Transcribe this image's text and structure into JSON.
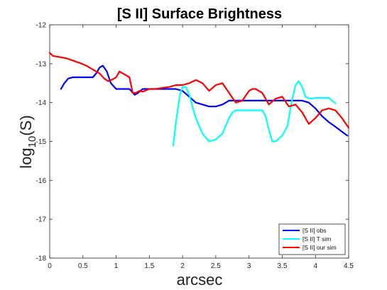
{
  "chart_data": {
    "type": "line",
    "title": "[S II] Surface Brightness",
    "xlabel": "arcsec",
    "ylabel": "log10(S)",
    "ylabel_main": "log",
    "ylabel_sub": "10",
    "ylabel_tail": "(S)",
    "xlim": [
      0,
      4.5
    ],
    "ylim": [
      -18,
      -12
    ],
    "xticks": [
      0,
      0.5,
      1,
      1.5,
      2,
      2.5,
      3,
      3.5,
      4,
      4.5
    ],
    "xtick_labels": [
      "0",
      "0.5",
      "1",
      "1.5",
      "2",
      "2.5",
      "3",
      "3.5",
      "4",
      "4.5"
    ],
    "yticks": [
      -18,
      -17,
      -16,
      -15,
      -14,
      -13,
      -12
    ],
    "ytick_labels": [
      "-18",
      "-17",
      "-16",
      "-15",
      "-14",
      "-13",
      "-12"
    ],
    "grid": false,
    "legend_position": "bottom-right",
    "series": [
      {
        "name": "[S II] obs",
        "color": "#0000ff",
        "x": [
          0.17,
          0.22,
          0.28,
          0.35,
          0.45,
          0.55,
          0.65,
          0.7,
          0.75,
          0.8,
          0.86,
          0.92,
          1.0,
          1.1,
          1.2,
          1.28,
          1.33,
          1.4,
          1.5,
          1.6,
          1.7,
          1.8,
          1.9,
          2.0,
          2.1,
          2.2,
          2.3,
          2.4,
          2.5,
          2.6,
          2.7,
          2.8,
          2.9,
          3.0,
          3.1,
          3.2,
          3.3,
          3.4,
          3.5,
          3.6,
          3.7,
          3.8,
          3.9,
          4.0,
          4.1,
          4.2,
          4.3,
          4.4,
          4.48
        ],
        "y": [
          -13.65,
          -13.5,
          -13.38,
          -13.35,
          -13.35,
          -13.35,
          -13.35,
          -13.25,
          -13.1,
          -13.05,
          -13.2,
          -13.5,
          -13.65,
          -13.65,
          -13.65,
          -13.8,
          -13.75,
          -13.65,
          -13.65,
          -13.65,
          -13.65,
          -13.65,
          -13.65,
          -13.7,
          -13.85,
          -14.0,
          -14.05,
          -14.1,
          -14.1,
          -14.05,
          -13.95,
          -13.95,
          -13.95,
          -13.95,
          -13.95,
          -13.95,
          -13.95,
          -13.95,
          -13.95,
          -13.95,
          -13.95,
          -13.95,
          -14.0,
          -14.15,
          -14.35,
          -14.5,
          -14.62,
          -14.75,
          -14.85
        ]
      },
      {
        "name": "[S II] T sim",
        "color": "#00ffff",
        "x": [
          1.86,
          1.9,
          1.96,
          2.0,
          2.05,
          2.1,
          2.15,
          2.2,
          2.3,
          2.4,
          2.5,
          2.6,
          2.7,
          2.75,
          2.8,
          2.9,
          3.0,
          3.1,
          3.2,
          3.25,
          3.3,
          3.35,
          3.4,
          3.5,
          3.58,
          3.64,
          3.7,
          3.75,
          3.8,
          3.85,
          3.92,
          4.0,
          4.1,
          4.2,
          4.3
        ],
        "y": [
          -15.1,
          -14.5,
          -13.8,
          -13.6,
          -13.6,
          -13.8,
          -14.1,
          -14.4,
          -14.8,
          -15.0,
          -14.95,
          -14.8,
          -14.4,
          -14.25,
          -14.2,
          -14.2,
          -14.2,
          -14.2,
          -14.2,
          -14.35,
          -14.7,
          -15.0,
          -15.0,
          -14.85,
          -14.6,
          -14.0,
          -13.55,
          -13.45,
          -13.6,
          -13.85,
          -13.9,
          -13.88,
          -13.88,
          -13.88,
          -14.02
        ]
      },
      {
        "name": "[S II] our sim",
        "color": "#ff0000",
        "x": [
          0.0,
          0.05,
          0.15,
          0.25,
          0.35,
          0.45,
          0.55,
          0.65,
          0.75,
          0.82,
          0.88,
          0.95,
          1.0,
          1.05,
          1.1,
          1.15,
          1.2,
          1.25,
          1.3,
          1.35,
          1.4,
          1.5,
          1.6,
          1.7,
          1.8,
          1.9,
          2.0,
          2.1,
          2.2,
          2.3,
          2.4,
          2.5,
          2.6,
          2.7,
          2.8,
          2.9,
          3.0,
          3.05,
          3.1,
          3.2,
          3.3,
          3.4,
          3.5,
          3.6,
          3.7,
          3.8,
          3.9,
          4.0,
          4.1,
          4.2,
          4.3,
          4.4,
          4.5
        ],
        "y": [
          -12.72,
          -12.8,
          -12.83,
          -12.86,
          -12.92,
          -12.98,
          -13.05,
          -13.15,
          -13.25,
          -13.38,
          -13.45,
          -13.4,
          -13.35,
          -13.2,
          -13.25,
          -13.3,
          -13.35,
          -13.75,
          -13.75,
          -13.7,
          -13.72,
          -13.65,
          -13.65,
          -13.62,
          -13.6,
          -13.55,
          -13.55,
          -13.5,
          -13.42,
          -13.5,
          -13.7,
          -13.55,
          -13.5,
          -13.75,
          -14.0,
          -13.95,
          -13.7,
          -13.65,
          -13.65,
          -13.75,
          -14.05,
          -13.9,
          -13.85,
          -14.1,
          -14.05,
          -14.25,
          -14.55,
          -14.4,
          -14.2,
          -14.15,
          -14.2,
          -14.4,
          -14.65
        ]
      }
    ]
  }
}
